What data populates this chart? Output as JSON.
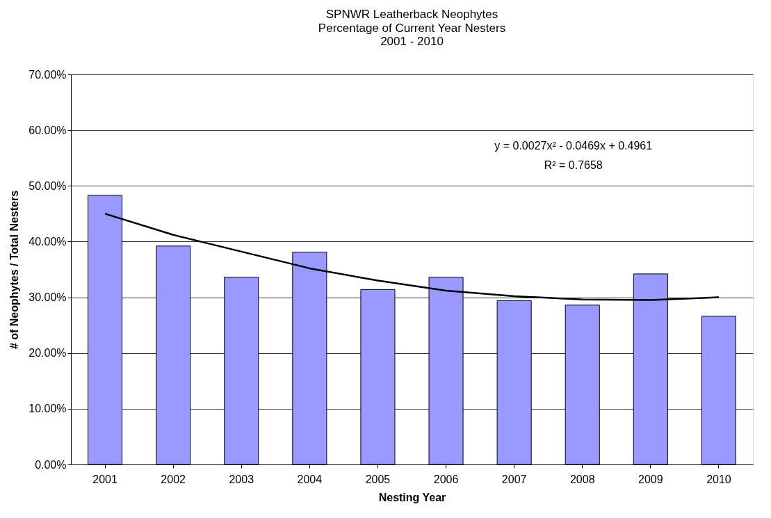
{
  "chart_data": {
    "type": "bar",
    "title": "SPNWR Leatherback Neophytes",
    "subtitle": "Percentage of Current Year Nesters\n2001 - 2010",
    "xlabel": "Nesting Year",
    "ylabel": "# of Neophytes / Total Nesters",
    "categories": [
      "2001",
      "2002",
      "2003",
      "2004",
      "2005",
      "2006",
      "2007",
      "2008",
      "2009",
      "2010"
    ],
    "series": [
      {
        "color": "#9999ff",
        "values": [
          48.3,
          39.2,
          33.6,
          38.1,
          31.4,
          33.6,
          29.4,
          28.6,
          34.2,
          26.6
        ]
      },
      {
        "type": "line",
        "color": "#000000",
        "values": [
          45.0,
          41.2,
          38.2,
          35.2,
          33.0,
          31.2,
          30.2,
          29.6,
          29.5,
          30.0
        ]
      }
    ],
    "ylim": [
      0,
      70
    ],
    "yticks": [
      {
        "value": 0,
        "label": "0.00%"
      },
      {
        "value": 10,
        "label": "10.00%"
      },
      {
        "value": 20,
        "label": "20.00%"
      },
      {
        "value": 30,
        "label": "30.00%"
      },
      {
        "value": 40,
        "label": "40.00%"
      },
      {
        "value": 50,
        "label": "50.00%"
      },
      {
        "value": 60,
        "label": "60.00%"
      },
      {
        "value": 70,
        "label": "70.00%"
      }
    ],
    "grid": "y",
    "marker": "none",
    "line_style": "solid",
    "annotations": [
      "y = 0.0027x² - 0.0469x + 0.4961",
      "R² = 0.7658"
    ]
  }
}
